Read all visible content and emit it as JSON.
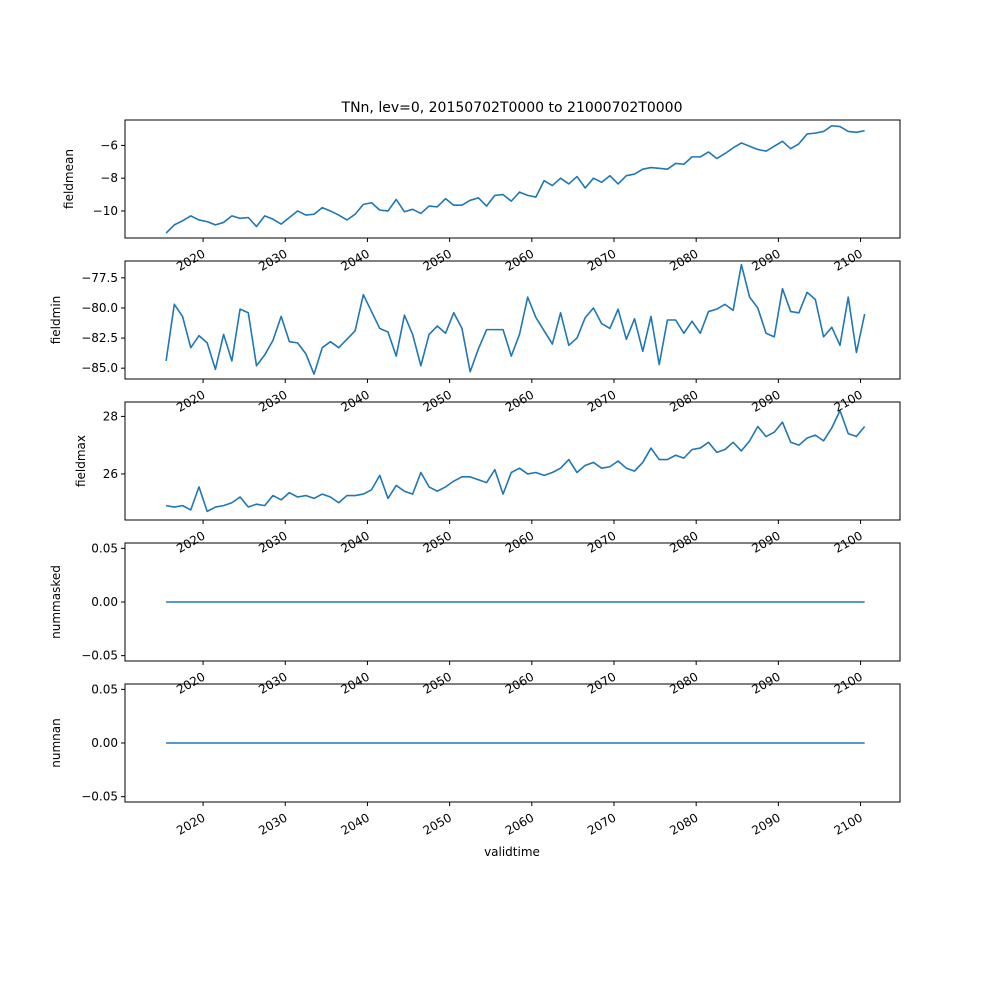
{
  "figure": {
    "title": "TNn, lev=0, 20150702T0000 to 21000702T0000",
    "xlabel": "validtime"
  },
  "colors": {
    "line": "#1f77b4",
    "axes": "#000000",
    "background": "#ffffff"
  },
  "chart_data": [
    {
      "type": "line",
      "ylabel": "fieldmean",
      "xlim": [
        2010.5,
        2104.8
      ],
      "ylim": [
        -11.65,
        -4.45
      ],
      "yticks": [
        -10,
        -8,
        -6
      ],
      "ytick_labels": [
        "−10",
        "−8",
        "−6"
      ],
      "xticks": [
        2020,
        2030,
        2040,
        2050,
        2060,
        2070,
        2080,
        2090,
        2100
      ],
      "xtick_labels": [
        "2020",
        "2030",
        "2040",
        "2050",
        "2060",
        "2070",
        "2080",
        "2090",
        "2100"
      ],
      "grid": false,
      "x": [
        2015.5,
        2016.5,
        2017.5,
        2018.5,
        2019.5,
        2020.5,
        2021.5,
        2022.5,
        2023.5,
        2024.5,
        2025.5,
        2026.5,
        2027.5,
        2028.5,
        2029.5,
        2030.5,
        2031.5,
        2032.5,
        2033.5,
        2034.5,
        2035.5,
        2036.5,
        2037.5,
        2038.5,
        2039.5,
        2040.5,
        2041.5,
        2042.5,
        2043.5,
        2044.5,
        2045.5,
        2046.5,
        2047.5,
        2048.5,
        2049.5,
        2050.5,
        2051.5,
        2052.5,
        2053.5,
        2054.5,
        2055.5,
        2056.5,
        2057.5,
        2058.5,
        2059.5,
        2060.5,
        2061.5,
        2062.5,
        2063.5,
        2064.5,
        2065.5,
        2066.5,
        2067.5,
        2068.5,
        2069.5,
        2070.5,
        2071.5,
        2072.5,
        2073.5,
        2074.5,
        2075.5,
        2076.5,
        2077.5,
        2078.5,
        2079.5,
        2080.5,
        2081.5,
        2082.5,
        2083.5,
        2084.5,
        2085.5,
        2086.5,
        2087.5,
        2088.5,
        2089.5,
        2090.5,
        2091.5,
        2092.5,
        2093.5,
        2094.5,
        2095.5,
        2096.5,
        2097.5,
        2098.5,
        2099.5,
        2100.5
      ],
      "series": [
        {
          "values": [
            -11.35,
            -10.85,
            -10.6,
            -10.3,
            -10.55,
            -10.65,
            -10.85,
            -10.7,
            -10.3,
            -10.45,
            -10.4,
            -10.95,
            -10.3,
            -10.5,
            -10.8,
            -10.4,
            -10.0,
            -10.25,
            -10.2,
            -9.8,
            -10.0,
            -10.25,
            -10.55,
            -10.2,
            -9.6,
            -9.5,
            -9.95,
            -10.0,
            -9.3,
            -10.05,
            -9.9,
            -10.15,
            -9.7,
            -9.75,
            -9.25,
            -9.65,
            -9.65,
            -9.35,
            -9.2,
            -9.7,
            -9.05,
            -9.0,
            -9.4,
            -8.85,
            -9.05,
            -9.15,
            -8.15,
            -8.45,
            -8.0,
            -8.35,
            -7.9,
            -8.6,
            -8.0,
            -8.25,
            -7.85,
            -8.35,
            -7.85,
            -7.75,
            -7.45,
            -7.35,
            -7.4,
            -7.45,
            -7.1,
            -7.15,
            -6.7,
            -6.7,
            -6.4,
            -6.8,
            -6.5,
            -6.15,
            -5.85,
            -6.05,
            -6.25,
            -6.35,
            -6.05,
            -5.75,
            -6.2,
            -5.9,
            -5.3,
            -5.25,
            -5.15,
            -4.8,
            -4.85,
            -5.15,
            -5.2,
            -5.1
          ]
        }
      ]
    },
    {
      "type": "line",
      "ylabel": "fieldmin",
      "xlim": [
        2010.5,
        2104.8
      ],
      "ylim": [
        -85.9,
        -76.1
      ],
      "yticks": [
        -85.0,
        -82.5,
        -80.0,
        -77.5
      ],
      "ytick_labels": [
        "−85.0",
        "−82.5",
        "−80.0",
        "−77.5"
      ],
      "xticks": [
        2020,
        2030,
        2040,
        2050,
        2060,
        2070,
        2080,
        2090,
        2100
      ],
      "xtick_labels": [
        "2020",
        "2030",
        "2040",
        "2050",
        "2060",
        "2070",
        "2080",
        "2090",
        "2100"
      ],
      "grid": false,
      "x": [
        2015.5,
        2016.5,
        2017.5,
        2018.5,
        2019.5,
        2020.5,
        2021.5,
        2022.5,
        2023.5,
        2024.5,
        2025.5,
        2026.5,
        2027.5,
        2028.5,
        2029.5,
        2030.5,
        2031.5,
        2032.5,
        2033.5,
        2034.5,
        2035.5,
        2036.5,
        2037.5,
        2038.5,
        2039.5,
        2040.5,
        2041.5,
        2042.5,
        2043.5,
        2044.5,
        2045.5,
        2046.5,
        2047.5,
        2048.5,
        2049.5,
        2050.5,
        2051.5,
        2052.5,
        2053.5,
        2054.5,
        2055.5,
        2056.5,
        2057.5,
        2058.5,
        2059.5,
        2060.5,
        2061.5,
        2062.5,
        2063.5,
        2064.5,
        2065.5,
        2066.5,
        2067.5,
        2068.5,
        2069.5,
        2070.5,
        2071.5,
        2072.5,
        2073.5,
        2074.5,
        2075.5,
        2076.5,
        2077.5,
        2078.5,
        2079.5,
        2080.5,
        2081.5,
        2082.5,
        2083.5,
        2084.5,
        2085.5,
        2086.5,
        2087.5,
        2088.5,
        2089.5,
        2090.5,
        2091.5,
        2092.5,
        2093.5,
        2094.5,
        2095.5,
        2096.5,
        2097.5,
        2098.5,
        2099.5,
        2100.5
      ],
      "series": [
        {
          "values": [
            -84.4,
            -79.7,
            -80.7,
            -83.3,
            -82.3,
            -82.9,
            -85.1,
            -82.2,
            -84.4,
            -80.1,
            -80.4,
            -84.8,
            -83.9,
            -82.7,
            -80.7,
            -82.8,
            -82.9,
            -83.8,
            -85.5,
            -83.3,
            -82.8,
            -83.3,
            -82.6,
            -81.9,
            -78.9,
            -80.3,
            -81.7,
            -82.0,
            -84.0,
            -80.6,
            -82.2,
            -84.8,
            -82.2,
            -81.5,
            -82.1,
            -80.4,
            -81.7,
            -85.3,
            -83.4,
            -81.8,
            -81.8,
            -81.8,
            -84.0,
            -82.2,
            -79.1,
            -80.8,
            -81.9,
            -83.0,
            -80.4,
            -83.1,
            -82.5,
            -80.8,
            -80.0,
            -81.3,
            -81.7,
            -80.1,
            -82.6,
            -80.9,
            -83.6,
            -80.7,
            -84.7,
            -81.0,
            -81.0,
            -82.1,
            -81.1,
            -82.1,
            -80.3,
            -80.1,
            -79.7,
            -80.2,
            -76.4,
            -79.1,
            -80.0,
            -82.1,
            -82.4,
            -78.4,
            -80.3,
            -80.4,
            -78.7,
            -79.3,
            -82.4,
            -81.6,
            -83.1,
            -79.1,
            -83.7,
            -80.5
          ]
        }
      ]
    },
    {
      "type": "line",
      "ylabel": "fieldmax",
      "xlim": [
        2010.5,
        2104.8
      ],
      "ylim": [
        24.4,
        28.5
      ],
      "yticks": [
        26,
        28
      ],
      "ytick_labels": [
        "26",
        "28"
      ],
      "xticks": [
        2020,
        2030,
        2040,
        2050,
        2060,
        2070,
        2080,
        2090,
        2100
      ],
      "xtick_labels": [
        "2020",
        "2030",
        "2040",
        "2050",
        "2060",
        "2070",
        "2080",
        "2090",
        "2100"
      ],
      "grid": false,
      "x": [
        2015.5,
        2016.5,
        2017.5,
        2018.5,
        2019.5,
        2020.5,
        2021.5,
        2022.5,
        2023.5,
        2024.5,
        2025.5,
        2026.5,
        2027.5,
        2028.5,
        2029.5,
        2030.5,
        2031.5,
        2032.5,
        2033.5,
        2034.5,
        2035.5,
        2036.5,
        2037.5,
        2038.5,
        2039.5,
        2040.5,
        2041.5,
        2042.5,
        2043.5,
        2044.5,
        2045.5,
        2046.5,
        2047.5,
        2048.5,
        2049.5,
        2050.5,
        2051.5,
        2052.5,
        2053.5,
        2054.5,
        2055.5,
        2056.5,
        2057.5,
        2058.5,
        2059.5,
        2060.5,
        2061.5,
        2062.5,
        2063.5,
        2064.5,
        2065.5,
        2066.5,
        2067.5,
        2068.5,
        2069.5,
        2070.5,
        2071.5,
        2072.5,
        2073.5,
        2074.5,
        2075.5,
        2076.5,
        2077.5,
        2078.5,
        2079.5,
        2080.5,
        2081.5,
        2082.5,
        2083.5,
        2084.5,
        2085.5,
        2086.5,
        2087.5,
        2088.5,
        2089.5,
        2090.5,
        2091.5,
        2092.5,
        2093.5,
        2094.5,
        2095.5,
        2096.5,
        2097.5,
        2098.5,
        2099.5,
        2100.5
      ],
      "series": [
        {
          "values": [
            24.9,
            24.85,
            24.9,
            24.75,
            25.55,
            24.7,
            24.85,
            24.9,
            25.0,
            25.2,
            24.85,
            24.95,
            24.9,
            25.25,
            25.1,
            25.35,
            25.2,
            25.25,
            25.15,
            25.3,
            25.2,
            25.0,
            25.25,
            25.25,
            25.3,
            25.45,
            25.95,
            25.15,
            25.6,
            25.4,
            25.3,
            26.05,
            25.55,
            25.4,
            25.55,
            25.75,
            25.9,
            25.9,
            25.8,
            25.7,
            26.15,
            25.3,
            26.05,
            26.2,
            26.0,
            26.05,
            25.95,
            26.05,
            26.2,
            26.5,
            26.05,
            26.3,
            26.4,
            26.2,
            26.25,
            26.45,
            26.2,
            26.1,
            26.4,
            26.9,
            26.5,
            26.5,
            26.65,
            26.55,
            26.85,
            26.9,
            27.1,
            26.75,
            26.85,
            27.1,
            26.8,
            27.15,
            27.65,
            27.3,
            27.45,
            27.8,
            27.1,
            27.0,
            27.25,
            27.35,
            27.15,
            27.6,
            28.2,
            27.4,
            27.3,
            27.65
          ]
        }
      ]
    },
    {
      "type": "line",
      "ylabel": "nummasked",
      "xlim": [
        2010.5,
        2104.8
      ],
      "ylim": [
        -0.055,
        0.055
      ],
      "yticks": [
        -0.05,
        0.0,
        0.05
      ],
      "ytick_labels": [
        "−0.05",
        "0.00",
        "0.05"
      ],
      "xticks": [
        2020,
        2030,
        2040,
        2050,
        2060,
        2070,
        2080,
        2090,
        2100
      ],
      "xtick_labels": [
        "2020",
        "2030",
        "2040",
        "2050",
        "2060",
        "2070",
        "2080",
        "2090",
        "2100"
      ],
      "grid": false,
      "x": [
        2015.5,
        2100.5
      ],
      "series": [
        {
          "values": [
            0,
            0
          ]
        }
      ]
    },
    {
      "type": "line",
      "ylabel": "numnan",
      "xlim": [
        2010.5,
        2104.8
      ],
      "ylim": [
        -0.055,
        0.055
      ],
      "yticks": [
        -0.05,
        0.0,
        0.05
      ],
      "ytick_labels": [
        "−0.05",
        "0.00",
        "0.05"
      ],
      "xticks": [
        2020,
        2030,
        2040,
        2050,
        2060,
        2070,
        2080,
        2090,
        2100
      ],
      "xtick_labels": [
        "2020",
        "2030",
        "2040",
        "2050",
        "2060",
        "2070",
        "2080",
        "2090",
        "2100"
      ],
      "grid": false,
      "x": [
        2015.5,
        2100.5
      ],
      "series": [
        {
          "values": [
            0,
            0
          ]
        }
      ]
    }
  ]
}
